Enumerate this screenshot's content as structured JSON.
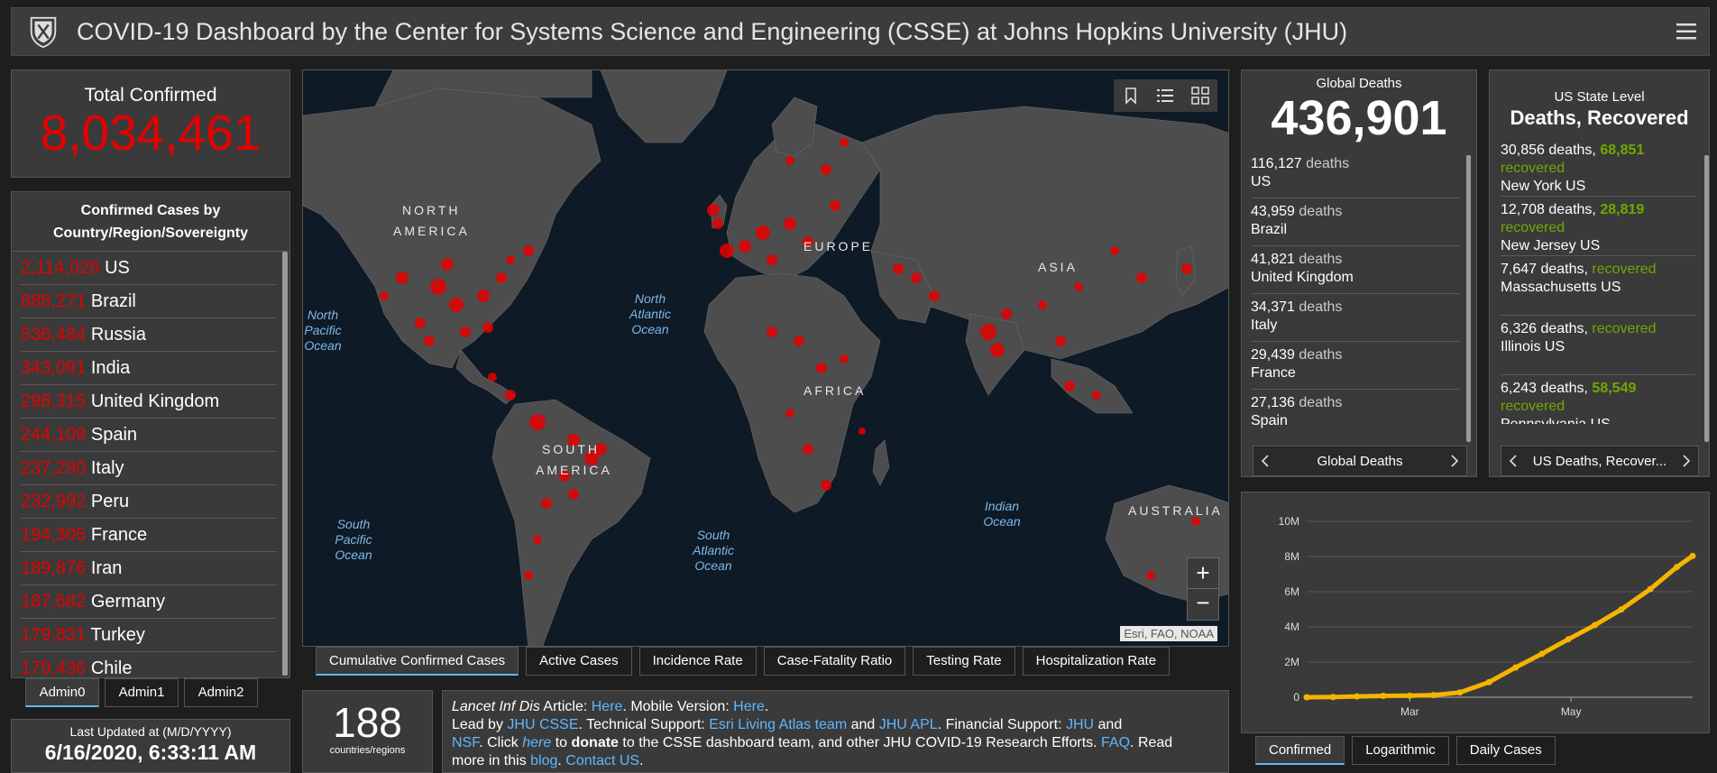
{
  "header": {
    "title": "COVID-19 Dashboard by the Center for Systems Science and Engineering (CSSE) at Johns Hopkins University (JHU)"
  },
  "total_confirmed": {
    "label": "Total Confirmed",
    "value": "8,034,461"
  },
  "cases_by_country": {
    "title_line1": "Confirmed Cases by",
    "title_line2": "Country/Region/Sovereignty",
    "rows": [
      {
        "count": "2,114,026",
        "name": "US"
      },
      {
        "count": "888,271",
        "name": "Brazil"
      },
      {
        "count": "536,484",
        "name": "Russia"
      },
      {
        "count": "343,091",
        "name": "India"
      },
      {
        "count": "298,315",
        "name": "United Kingdom"
      },
      {
        "count": "244,109",
        "name": "Spain"
      },
      {
        "count": "237,290",
        "name": "Italy"
      },
      {
        "count": "232,992",
        "name": "Peru"
      },
      {
        "count": "194,305",
        "name": "France"
      },
      {
        "count": "189,876",
        "name": "Iran"
      },
      {
        "count": "187,682",
        "name": "Germany"
      },
      {
        "count": "179,831",
        "name": "Turkey"
      },
      {
        "count": "179,436",
        "name": "Chile"
      }
    ]
  },
  "admin_tabs": [
    "Admin0",
    "Admin1",
    "Admin2"
  ],
  "last_updated": {
    "label": "Last Updated at (M/D/YYYY)",
    "value": "6/16/2020, 6:33:11 AM"
  },
  "map": {
    "labels": {
      "north_america": "NORTH AMERICA",
      "north_america_1": "NORTH",
      "north_america_2": "AMERICA",
      "south_america_1": "SOUTH",
      "south_america_2": "AMERICA",
      "europe": "EUROPE",
      "asia": "ASIA",
      "africa": "AFRICA",
      "australia": "AUSTRALIA",
      "north_pacific": [
        "North",
        "Pacific",
        "Ocean"
      ],
      "north_atlantic": [
        "North",
        "Atlantic",
        "Ocean"
      ],
      "south_pacific": [
        "South",
        "Pacific",
        "Ocean"
      ],
      "south_atlantic": [
        "South",
        "Atlantic",
        "Ocean"
      ],
      "indian_ocean": [
        "Indian",
        "Ocean"
      ]
    },
    "zoom_in": "+",
    "zoom_out": "−",
    "attribution": "Esri, FAO, NOAA"
  },
  "map_tabs": [
    "Cumulative Confirmed Cases",
    "Active Cases",
    "Incidence Rate",
    "Case-Fatality Ratio",
    "Testing Rate",
    "Hospitalization Rate"
  ],
  "countries": {
    "value": "188",
    "label": "countries/regions"
  },
  "info": {
    "line1_a": "Lancet Inf Dis",
    "line1_b": " Article: ",
    "line1_link1": "Here",
    "line1_c": ". Mobile Version: ",
    "line1_link2": "Here",
    "line1_d": ".",
    "line2_a": "Lead by ",
    "line2_link1": "JHU CSSE",
    "line2_b": ". Technical Support: ",
    "line2_link2": "Esri Living Atlas team",
    "line2_c": " and ",
    "line2_link3": "JHU APL",
    "line2_d": ". Financial Support: ",
    "line2_link4": "JHU",
    "line2_e": " and",
    "line3_link1": "NSF",
    "line3_a": ". Click ",
    "line3_link2": "here",
    "line3_b": " to ",
    "line3_bold": "donate",
    "line3_c": " to the CSSE dashboard team, and other JHU COVID-19 Research Efforts. ",
    "line3_link3": "FAQ",
    "line3_d": ". Read",
    "line4_a": "more in this ",
    "line4_link1": "blog",
    "line4_b": ". ",
    "line4_link2": "Contact US",
    "line4_c": "."
  },
  "global_deaths": {
    "label": "Global Deaths",
    "value": "436,901",
    "rows": [
      {
        "count": "116,127",
        "suffix": "deaths",
        "name": "US"
      },
      {
        "count": "43,959",
        "suffix": "deaths",
        "name": "Brazil"
      },
      {
        "count": "41,821",
        "suffix": "deaths",
        "name": "United Kingdom"
      },
      {
        "count": "34,371",
        "suffix": "deaths",
        "name": "Italy"
      },
      {
        "count": "29,439",
        "suffix": "deaths",
        "name": "France"
      },
      {
        "count": "27,136",
        "suffix": "deaths",
        "name": "Spain"
      }
    ],
    "nav_label": "Global Deaths"
  },
  "us_state": {
    "label": "US State Level",
    "title": "Deaths, Recovered",
    "rows": [
      {
        "deaths": "30,856 deaths,",
        "recovered_num": "68,851",
        "recovered_word": "recovered",
        "name": "New York US"
      },
      {
        "deaths": "12,708 deaths,",
        "recovered_num": "28,819",
        "recovered_word": "recovered",
        "name": "New Jersey US"
      },
      {
        "deaths": "7,647 deaths,",
        "recovered_num": "",
        "recovered_word": "recovered",
        "name": "Massachusetts US"
      },
      {
        "deaths": "6,326 deaths,",
        "recovered_num": "",
        "recovered_word": "recovered",
        "name": "Illinois US"
      },
      {
        "deaths": "6,243 deaths,",
        "recovered_num": "58,549",
        "recovered_word": "recovered",
        "name": "Pennsylvania US"
      }
    ],
    "nav_label": "US Deaths, Recover..."
  },
  "chart_tabs": [
    "Confirmed",
    "Logarithmic",
    "Daily Cases"
  ],
  "colors": {
    "case_red": "#e60000",
    "recovered_green": "#70a800",
    "link_blue": "#60b7ff",
    "chart_line": "#f5b400"
  },
  "chart_data": {
    "type": "line",
    "ylim": [
      0,
      10000000
    ],
    "yticks": [
      "10M",
      "8M",
      "6M",
      "4M",
      "2M",
      "0"
    ],
    "xticks": [
      "Mar",
      "May"
    ],
    "series": [
      {
        "x": [
          "2020-01-22",
          "2020-02-01",
          "2020-02-10",
          "2020-02-20",
          "2020-03-01",
          "2020-03-10",
          "2020-03-20",
          "2020-03-31",
          "2020-04-10",
          "2020-04-20",
          "2020-04-30",
          "2020-05-10",
          "2020-05-20",
          "2020-05-31",
          "2020-06-10",
          "2020-06-16"
        ],
        "y": [
          600,
          12000,
          42000,
          77000,
          88000,
          119000,
          272000,
          860000,
          1690000,
          2470000,
          3300000,
          4100000,
          4990000,
          6150000,
          7400000,
          8034461
        ]
      }
    ]
  }
}
